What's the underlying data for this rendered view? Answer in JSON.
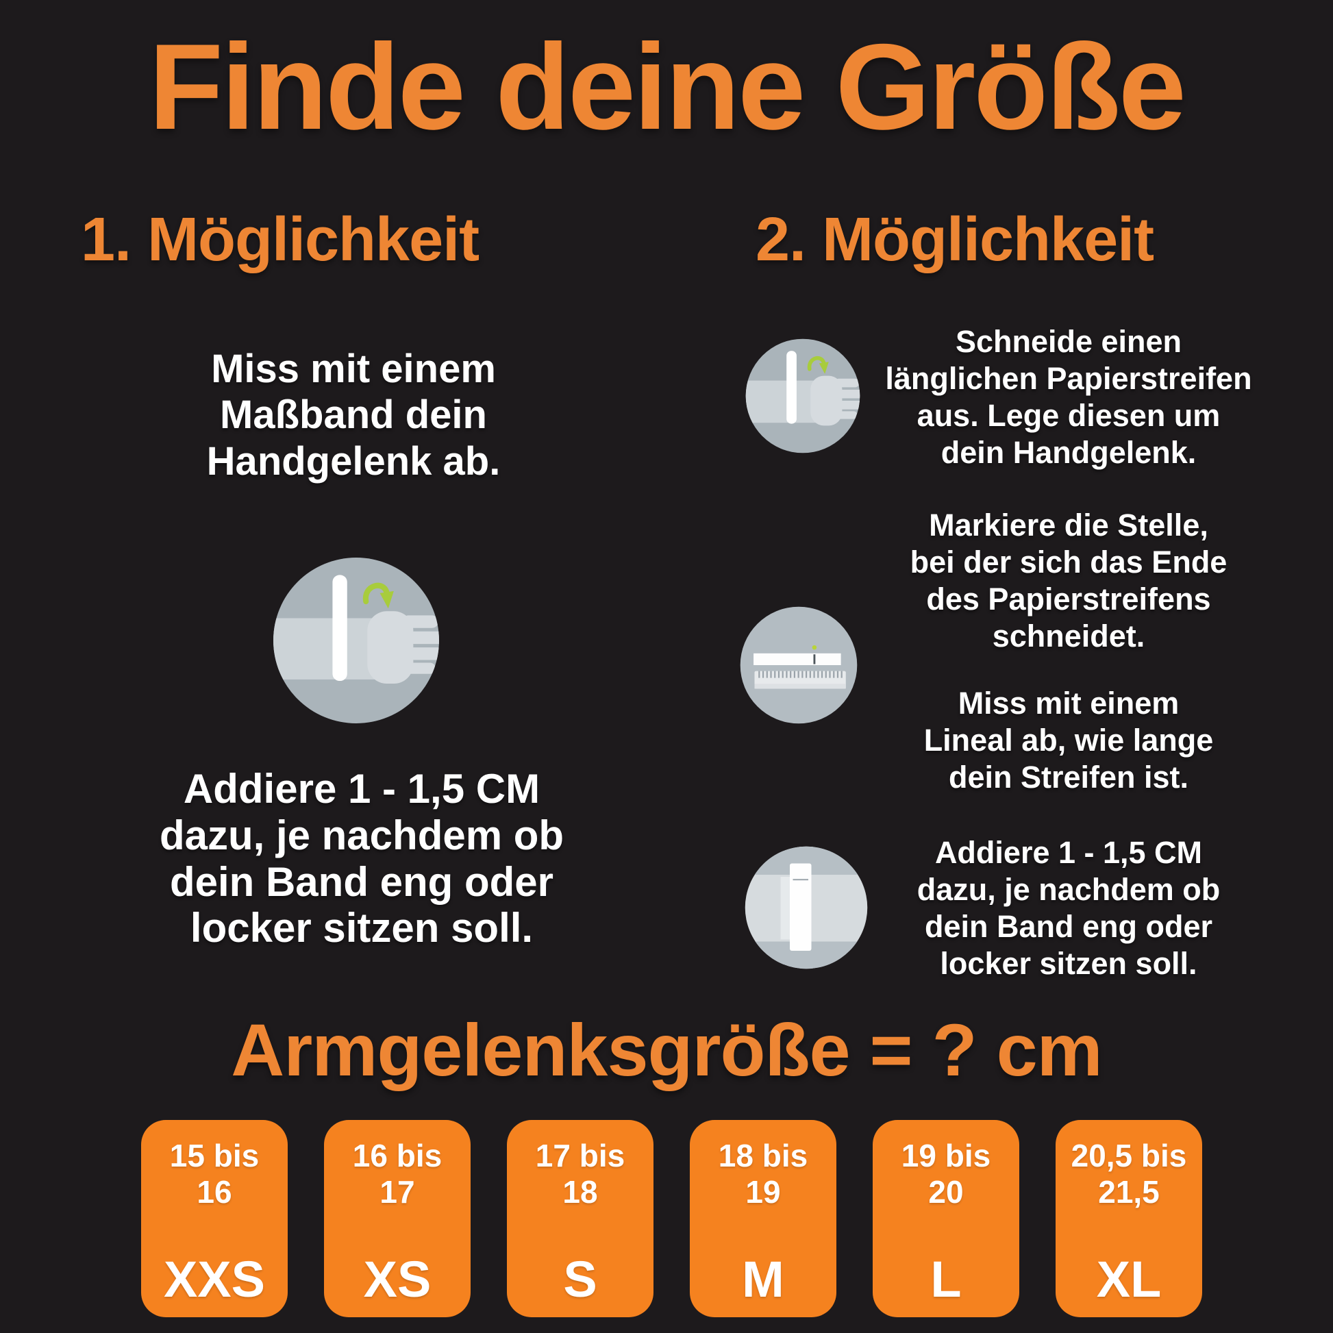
{
  "title": "Finde deine Größe",
  "colors": {
    "background": "#1d1a1c",
    "heading_orange": "#ee8634",
    "box_orange": "#f5821f",
    "text_white": "#ffffff",
    "circle_gray": "#aab4ba",
    "circle_gray_light": "#d6dbde",
    "arm_gray": "#ccd3d7",
    "hand_gray": "#d6dbdf",
    "arrow_green": "#a8cc3c"
  },
  "method1": {
    "heading": "1. Möglichkeit",
    "step1_lines": [
      "Miss mit einem",
      "Maßband dein",
      "Handgelenk ab."
    ],
    "step2_lines": [
      "Addiere 1 - 1,5 CM",
      "dazu, je nachdem ob",
      "dein Band eng oder",
      "locker sitzen soll."
    ]
  },
  "method2": {
    "heading": "2. Möglichkeit",
    "step1_lines": [
      "Schneide einen",
      "länglichen Papierstreifen",
      "aus. Lege diesen um",
      "dein Handgelenk."
    ],
    "step2a_lines": [
      "Markiere die Stelle,",
      "bei der sich das Ende",
      "des Papierstreifens",
      "schneidet."
    ],
    "step2b_lines": [
      "Miss mit einem",
      "Lineal ab, wie lange",
      "dein Streifen ist."
    ],
    "step3_lines": [
      "Addiere 1 - 1,5 CM",
      "dazu, je nachdem ob",
      "dein Band eng oder",
      "locker sitzen soll."
    ]
  },
  "result_heading": "Armgelenksgröße = ? cm",
  "sizes": [
    {
      "range_lines": [
        "15 bis",
        "16"
      ],
      "label": "XXS"
    },
    {
      "range_lines": [
        "16 bis",
        "17"
      ],
      "label": "XS"
    },
    {
      "range_lines": [
        "17 bis",
        "18"
      ],
      "label": "S"
    },
    {
      "range_lines": [
        "18 bis",
        "19"
      ],
      "label": "M"
    },
    {
      "range_lines": [
        "19 bis",
        "20"
      ],
      "label": "L"
    },
    {
      "range_lines": [
        "20,5 bis",
        "21,5"
      ],
      "label": "XL"
    }
  ]
}
